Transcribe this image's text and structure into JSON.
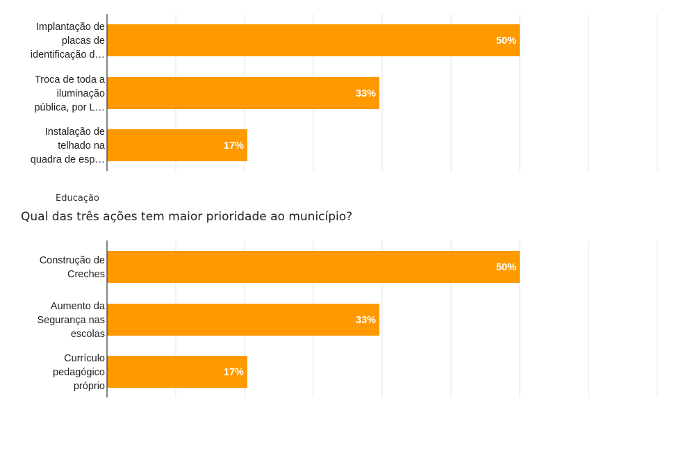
{
  "colors": {
    "bar": "#ff9900",
    "grid": "#e6e6e6",
    "axis": "#333333"
  },
  "section": {
    "label": "Educação",
    "question": "Qual das três ações tem maior prioridade ao município?"
  },
  "chart_data": [
    {
      "type": "bar",
      "orientation": "horizontal",
      "categories": [
        [
          "Implantação de",
          "placas de",
          "identificação d…"
        ],
        [
          "Troca de toda a",
          "iluminação",
          "pública, por L…"
        ],
        [
          "Instalação de",
          "telhado na",
          "quadra de esp…"
        ]
      ],
      "values": [
        50,
        33,
        17
      ],
      "value_labels": [
        "50%",
        "33%",
        "17%"
      ],
      "xlim": [
        0,
        60
      ],
      "grid": true
    },
    {
      "type": "bar",
      "orientation": "horizontal",
      "categories": [
        [
          "Construção de",
          "Creches"
        ],
        [
          "Aumento da",
          "Segurança nas",
          "escolas"
        ],
        [
          "Currículo",
          "pedagógico",
          "próprio"
        ]
      ],
      "values": [
        50,
        33,
        17
      ],
      "value_labels": [
        "50%",
        "33%",
        "17%"
      ],
      "xlim": [
        0,
        60
      ],
      "grid": true
    }
  ]
}
